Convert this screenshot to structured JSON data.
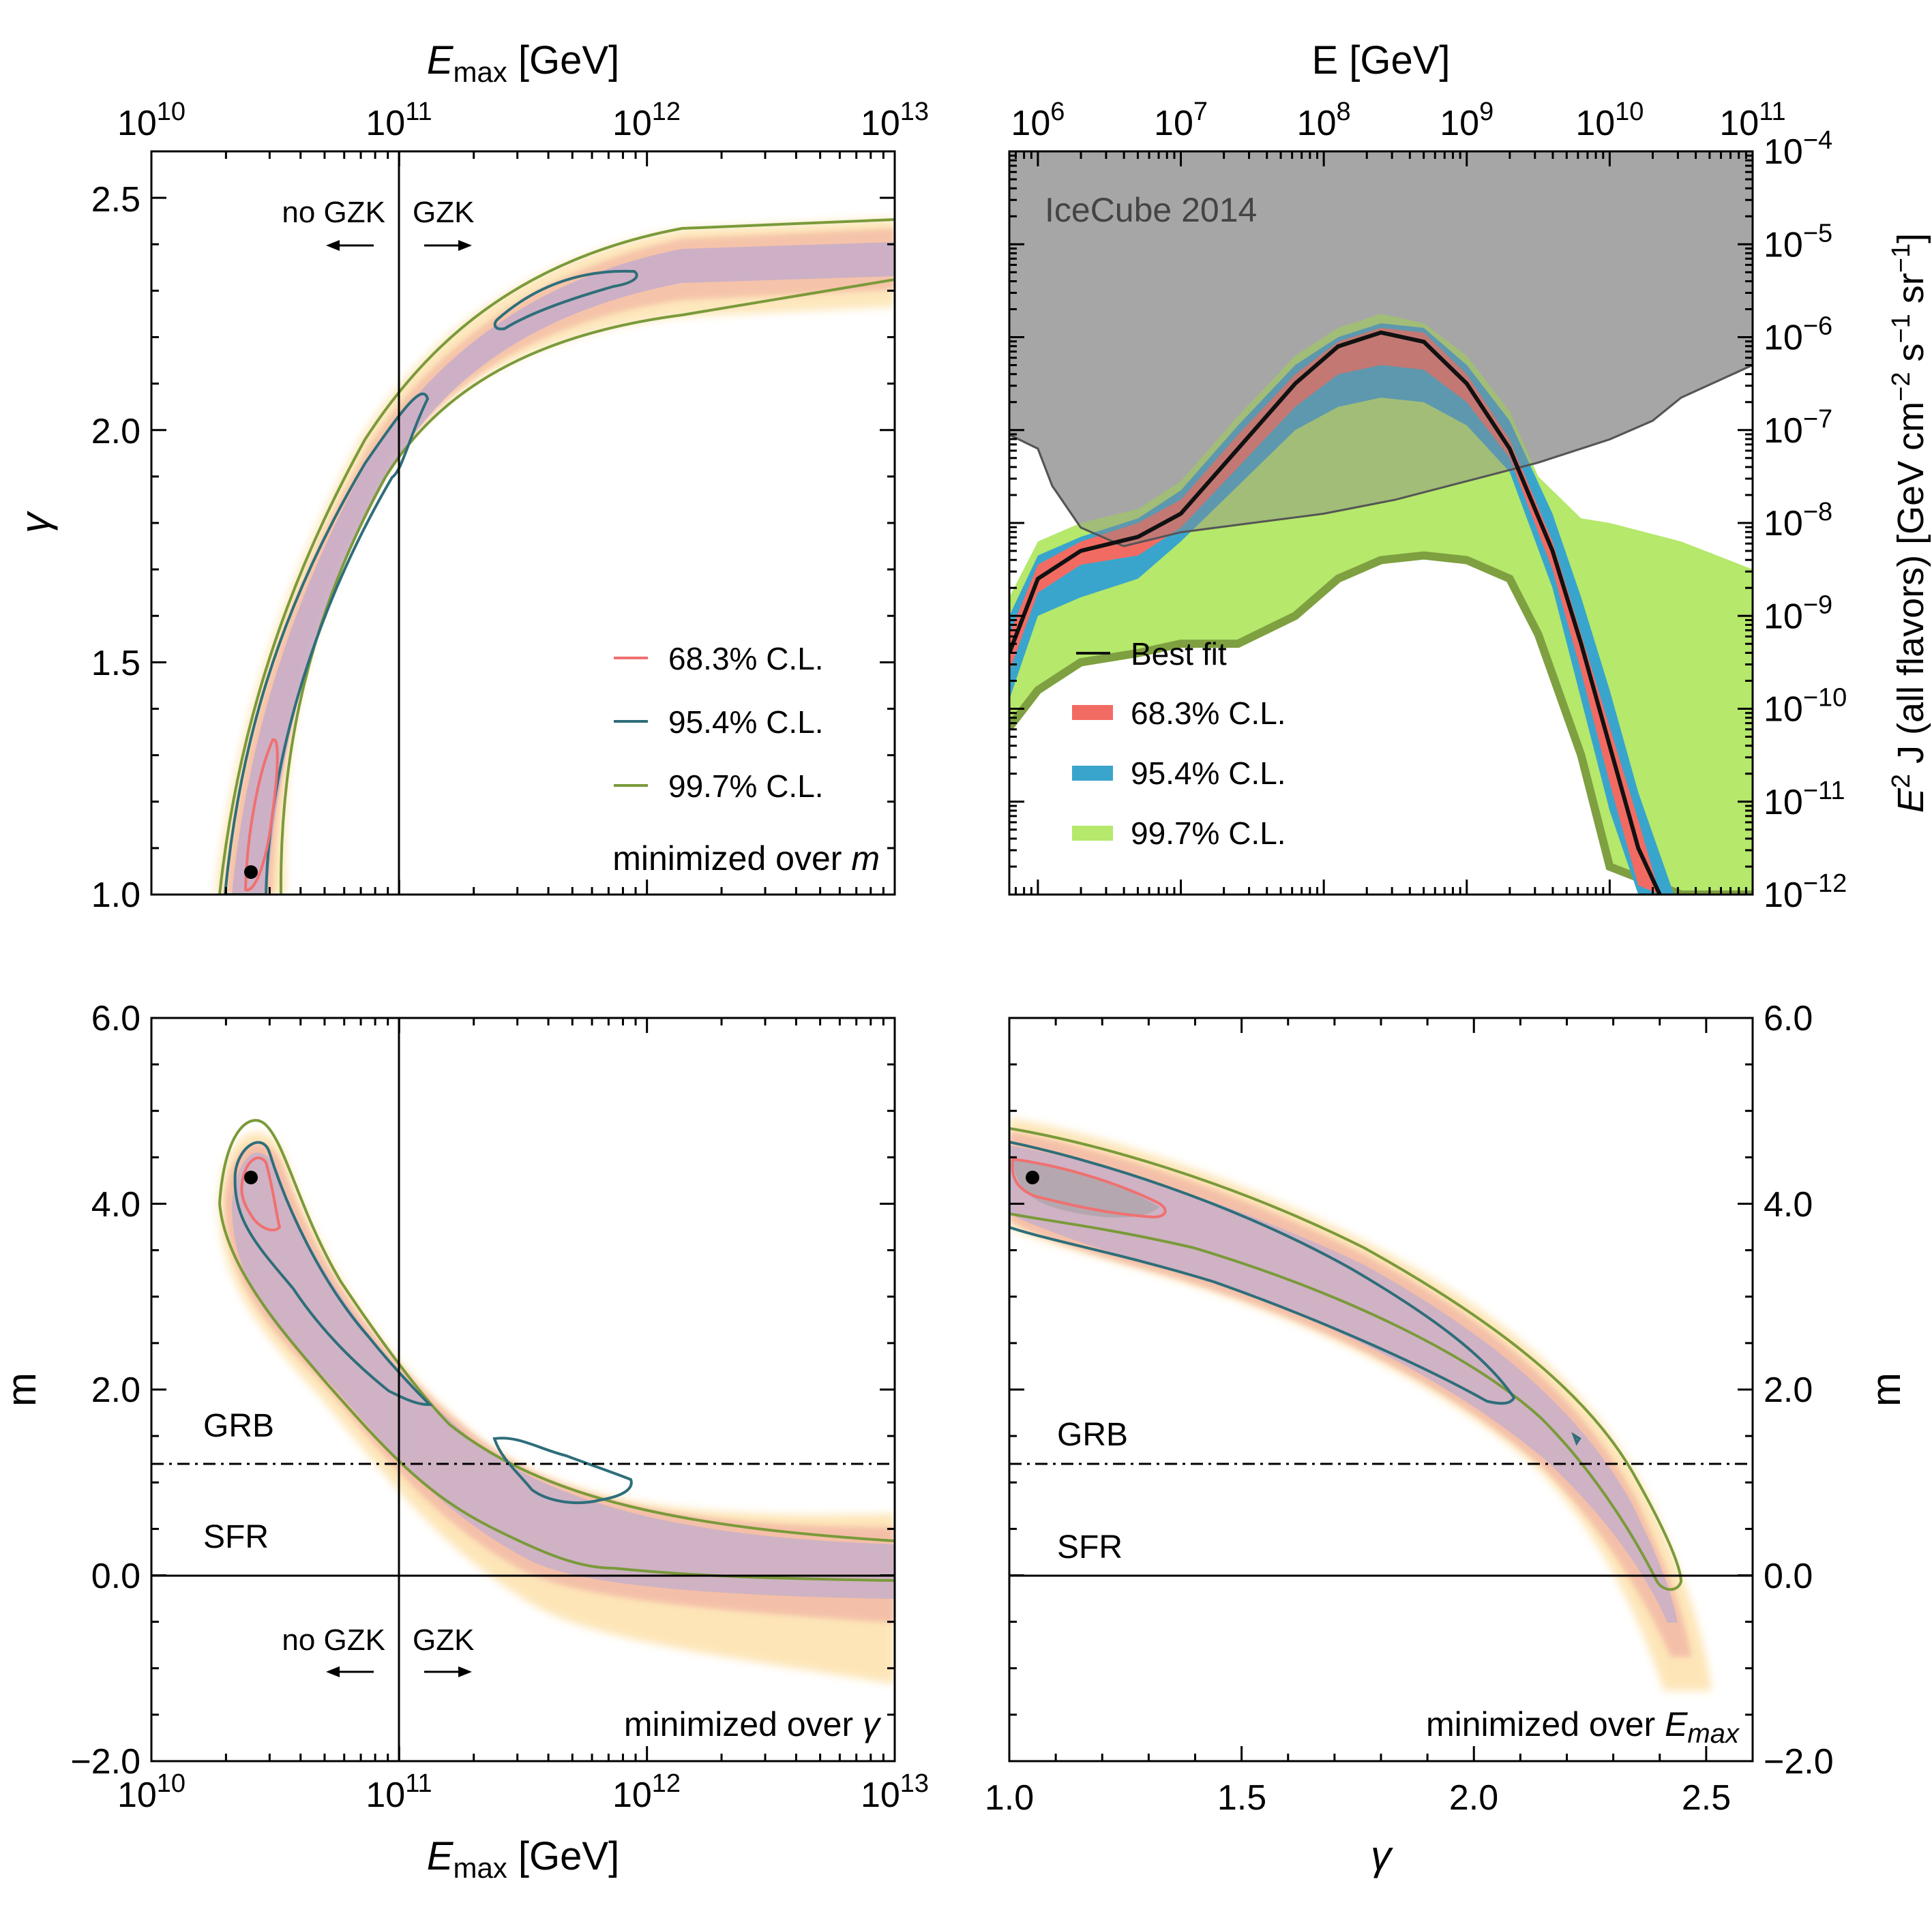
{
  "chart_data": [
    {
      "type": "heatmap",
      "panel": "top-left",
      "title": "",
      "xlabel_top": {
        "main": "E",
        "sub": "max",
        "unit": " [GeV]"
      },
      "ylabel": "γ",
      "xscale": "log",
      "xlim_exp": [
        10,
        13
      ],
      "ylim": [
        1.0,
        2.6
      ],
      "x_ticks": [
        {
          "label": "10",
          "sup": "10"
        },
        {
          "label": "10",
          "sup": "11"
        },
        {
          "label": "10",
          "sup": "12"
        },
        {
          "label": "10",
          "sup": "13"
        }
      ],
      "y_ticks": [
        "1.0",
        "1.5",
        "2.0",
        "2.5"
      ],
      "annotations": {
        "no_gzk": "no GZK",
        "gzk": "GZK",
        "minimized": "minimized over ",
        "minimized_var": "m"
      },
      "legend": {
        "placement": "bottom-right",
        "entries": [
          "68.3% C.L.",
          "95.4% C.L.",
          "99.7% C.L."
        ],
        "colors": [
          "#f07070",
          "#2e6e7a",
          "#7a9a3a"
        ]
      },
      "best_fit": {
        "log10_emax": 10.4,
        "gamma": 1.05
      },
      "gzk_line_log10_emax": 11.0,
      "ridge_gamma_at_log10_emax": {
        "10.3": 1.0,
        "10.5": 1.3,
        "10.7": 1.6,
        "11.0": 2.0,
        "11.3": 2.2,
        "11.7": 2.3,
        "12.0": 2.35,
        "12.5": 2.38,
        "13.0": 2.39
      }
    },
    {
      "type": "area",
      "panel": "top-right",
      "title": "IceCube 2014",
      "xlabel_top": "E [GeV]",
      "ylabel": {
        "main": "E",
        "sup": "2",
        "rest": " J  (all flavors)  [GeV cm",
        "sup2": "−2",
        "mid": " s",
        "sup3": "−1",
        "mid2": " sr",
        "sup4": "−1",
        "end": "]"
      },
      "xscale": "log",
      "yscale": "log",
      "xlim_exp": [
        5.8,
        11
      ],
      "ylim_exp": [
        -12,
        -4
      ],
      "x_ticks": [
        {
          "label": "10",
          "sup": "6"
        },
        {
          "label": "10",
          "sup": "7"
        },
        {
          "label": "10",
          "sup": "8"
        },
        {
          "label": "10",
          "sup": "9"
        },
        {
          "label": "10",
          "sup": "10"
        },
        {
          "label": "10",
          "sup": "11"
        }
      ],
      "y_ticks": [
        {
          "label": "10",
          "sup": "−4"
        },
        {
          "label": "10",
          "sup": "−5"
        },
        {
          "label": "10",
          "sup": "−6"
        },
        {
          "label": "10",
          "sup": "−7"
        },
        {
          "label": "10",
          "sup": "−8"
        },
        {
          "label": "10",
          "sup": "−9"
        },
        {
          "label": "10",
          "sup": "−10"
        },
        {
          "label": "10",
          "sup": "−11"
        },
        {
          "label": "10",
          "sup": "−12"
        }
      ],
      "legend": {
        "placement": "bottom-left",
        "entries": [
          "Best fit",
          "68.3% C.L.",
          "95.4% C.L.",
          "99.7% C.L."
        ],
        "colors": [
          "#111111",
          "#f26b63",
          "#3aa5cc",
          "#b5e86b"
        ]
      },
      "icecube_limit": {
        "log10_E": [
          5.8,
          6.0,
          6.1,
          6.3,
          6.6,
          7.0,
          7.5,
          8.0,
          8.5,
          9.0,
          9.5,
          10.0,
          10.3,
          10.5,
          11.0
        ],
        "log10_flux": [
          -7.05,
          -7.2,
          -7.6,
          -8.05,
          -8.25,
          -8.1,
          -8.0,
          -7.9,
          -7.75,
          -7.55,
          -7.35,
          -7.1,
          -6.9,
          -6.65,
          -6.3
        ]
      },
      "best_fit": {
        "log10_E": [
          5.8,
          6.0,
          6.3,
          6.7,
          7.0,
          7.4,
          7.8,
          8.1,
          8.4,
          8.7,
          9.0,
          9.3,
          9.6,
          9.8,
          10.0,
          10.2,
          10.35
        ],
        "log10_flux": [
          -9.4,
          -8.6,
          -8.3,
          -8.15,
          -7.9,
          -7.2,
          -6.5,
          -6.1,
          -5.95,
          -6.05,
          -6.5,
          -7.2,
          -8.3,
          -9.3,
          -10.4,
          -11.5,
          -12.0
        ]
      },
      "band_68": {
        "log10_E": [
          5.8,
          6.0,
          6.3,
          6.7,
          7.0,
          7.4,
          7.8,
          8.1,
          8.4,
          8.7,
          9.0,
          9.3,
          9.6,
          9.8,
          10.0,
          10.2,
          10.35
        ],
        "upper": [
          -9.2,
          -8.45,
          -8.2,
          -8.0,
          -7.75,
          -7.05,
          -6.4,
          -6.05,
          -5.9,
          -5.95,
          -6.4,
          -7.1,
          -8.2,
          -9.2,
          -10.2,
          -11.2,
          -12.0
        ],
        "lower": [
          -9.6,
          -8.75,
          -8.45,
          -8.35,
          -8.05,
          -7.4,
          -6.75,
          -6.4,
          -6.3,
          -6.35,
          -6.7,
          -7.3,
          -8.5,
          -9.6,
          -10.8,
          -11.9,
          -12.0
        ]
      },
      "band_95": {
        "log10_E": [
          5.8,
          6.0,
          6.3,
          6.7,
          7.0,
          7.4,
          7.8,
          8.1,
          8.4,
          8.7,
          9.0,
          9.3,
          9.6,
          9.8,
          10.0,
          10.2,
          10.45
        ],
        "upper": [
          -9.0,
          -8.35,
          -8.15,
          -7.95,
          -7.65,
          -6.95,
          -6.3,
          -6.0,
          -5.85,
          -5.9,
          -6.3,
          -6.9,
          -7.9,
          -8.8,
          -9.8,
          -10.9,
          -12.0
        ],
        "lower": [
          -9.9,
          -9.0,
          -8.8,
          -8.6,
          -8.2,
          -7.6,
          -7.0,
          -6.75,
          -6.65,
          -6.7,
          -6.95,
          -7.45,
          -8.7,
          -9.9,
          -11.1,
          -12.0,
          -12.0
        ]
      },
      "band_99": {
        "log10_E": [
          5.8,
          6.0,
          6.3,
          6.7,
          7.0,
          7.4,
          7.8,
          8.1,
          8.4,
          8.7,
          9.0,
          9.3,
          9.5,
          9.8,
          10.0,
          10.5,
          11.0
        ],
        "upper": [
          -8.8,
          -8.2,
          -8.0,
          -7.85,
          -7.55,
          -6.85,
          -6.2,
          -5.9,
          -5.75,
          -5.85,
          -6.2,
          -6.8,
          -7.5,
          -7.95,
          -8.0,
          -8.2,
          -8.5
        ],
        "lower": [
          -10.2,
          -9.8,
          -9.5,
          -9.4,
          -9.3,
          -9.3,
          -9.0,
          -8.6,
          -8.4,
          -8.35,
          -8.4,
          -8.6,
          -9.2,
          -10.5,
          -11.7,
          -12.0,
          -12.0
        ]
      }
    },
    {
      "type": "heatmap",
      "panel": "bottom-left",
      "xlabel": {
        "main": "E",
        "sub": "max",
        "unit": " [GeV]"
      },
      "ylabel": "m",
      "xscale": "log",
      "xlim_exp": [
        10,
        13
      ],
      "ylim": [
        -2.0,
        6.0
      ],
      "x_ticks": [
        {
          "label": "10",
          "sup": "10"
        },
        {
          "label": "10",
          "sup": "11"
        },
        {
          "label": "10",
          "sup": "12"
        },
        {
          "label": "10",
          "sup": "13"
        }
      ],
      "y_ticks": [
        "−2.0",
        "0.0",
        "2.0",
        "4.0",
        "6.0"
      ],
      "annotations": {
        "grb": "GRB",
        "sfr": "SFR",
        "no_gzk": "no GZK",
        "gzk": "GZK",
        "minimized": "minimized over ",
        "minimized_var": "γ"
      },
      "best_fit": {
        "log10_emax": 10.4,
        "m": 4.3
      },
      "grb_line_m": 1.2,
      "sfr_line_m": 0.0,
      "gzk_line_log10_emax": 11.0,
      "ridge_m_at_log10_emax": {
        "10.3": 4.3,
        "10.6": 3.5,
        "10.9": 2.5,
        "11.2": 1.6,
        "11.6": 1.2,
        "12.0": 0.8,
        "12.5": 0.6,
        "13.0": 0.5
      }
    },
    {
      "type": "heatmap",
      "panel": "bottom-right",
      "xlabel": "γ",
      "ylabel": "m",
      "xlim": [
        1.0,
        2.6
      ],
      "ylim": [
        -2.0,
        6.0
      ],
      "x_ticks": [
        "1.0",
        "1.5",
        "2.0",
        "2.5"
      ],
      "y_ticks": [
        "−2.0",
        "0.0",
        "2.0",
        "4.0",
        "6.0"
      ],
      "annotations": {
        "grb": "GRB",
        "sfr": "SFR",
        "minimized": "minimized over ",
        "minimized_var": "E",
        "minimized_var_sub": "max"
      },
      "best_fit": {
        "gamma": 1.05,
        "m": 4.3
      },
      "grb_line_m": 1.2,
      "sfr_line_m": 0.0,
      "ridge_m_at_gamma": {
        "1.0": 4.4,
        "1.2": 4.0,
        "1.5": 3.3,
        "1.8": 2.6,
        "2.0": 2.0,
        "2.2": 1.4,
        "2.35": 0.7,
        "2.45": 0.0,
        "2.5": -0.6
      }
    }
  ]
}
